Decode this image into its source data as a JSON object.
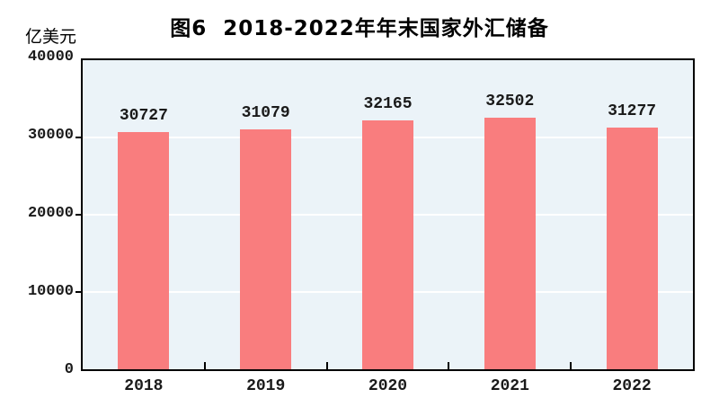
{
  "chart_data": {
    "type": "bar",
    "title": "图6  2018-2022年年末国家外汇储备",
    "ylabel": "亿美元",
    "xlabel": "",
    "categories": [
      "2018",
      "2019",
      "2020",
      "2021",
      "2022"
    ],
    "values": [
      30727,
      31079,
      32165,
      32502,
      31277
    ],
    "data_labels": [
      30727,
      31079,
      32165,
      32502,
      31277
    ],
    "ylim": [
      0,
      40000
    ],
    "yticks": [
      0,
      10000,
      20000,
      30000,
      40000
    ],
    "grid": "horizontal white gridlines at 10000/20000/30000",
    "legend": "none",
    "colors": {
      "bar": "#F97D7E",
      "plot_background": "#EBF3F8",
      "gridline": "#FFFFFF",
      "plot_border": "#000000",
      "text": "#1a1a1a"
    }
  }
}
